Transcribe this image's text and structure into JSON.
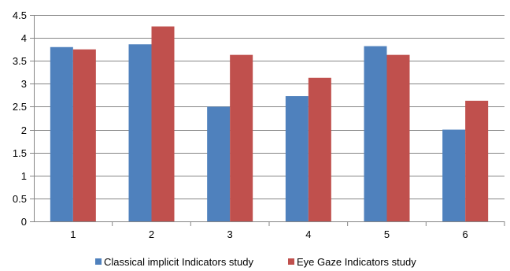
{
  "chart_data": {
    "type": "bar",
    "categories": [
      "1",
      "2",
      "3",
      "4",
      "5",
      "6"
    ],
    "series": [
      {
        "name": "Classical implicit Indicators study",
        "color": "#4f81bd",
        "values": [
          3.8,
          3.86,
          2.5,
          2.73,
          3.82,
          2.0
        ]
      },
      {
        "name": "Eye Gaze Indicators study",
        "color": "#c0504d",
        "values": [
          3.75,
          4.25,
          3.63,
          3.13,
          3.63,
          2.63
        ]
      }
    ],
    "yticks": [
      "0",
      "0.5",
      "1",
      "1.5",
      "2",
      "2.5",
      "3",
      "3.5",
      "4",
      "4.5"
    ],
    "ylim": [
      0,
      4.5
    ],
    "grid": true,
    "grid_color": "#868686",
    "legend_position": "bottom"
  }
}
